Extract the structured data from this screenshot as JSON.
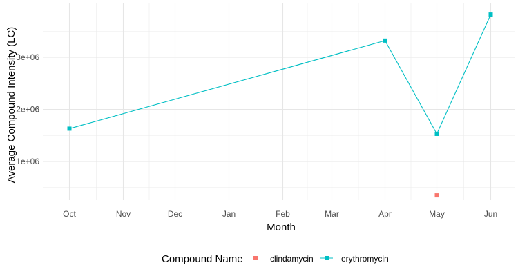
{
  "chart_data": {
    "type": "line",
    "xlabel": "Month",
    "ylabel": "Average Compound Intensity (LC)",
    "x_categories": [
      "Oct",
      "Nov",
      "Dec",
      "Jan",
      "Feb",
      "Mar",
      "Apr",
      "May",
      "Jun"
    ],
    "y_ticks": [
      {
        "value": 1000000,
        "label": "1e+06"
      },
      {
        "value": 2000000,
        "label": "2e+06"
      },
      {
        "value": 3000000,
        "label": "3e+06"
      }
    ],
    "ylim": [
      250000,
      4000000
    ],
    "grid": true,
    "legend": {
      "title": "Compound Name",
      "placement": "bottom"
    },
    "series": [
      {
        "name": "clindamycin",
        "color": "#F8766D",
        "line": false,
        "points": [
          {
            "month": "May",
            "value": 350000
          }
        ]
      },
      {
        "name": "erythromycin",
        "color": "#00BFC4",
        "line": true,
        "points": [
          {
            "month": "Oct",
            "value": 1630000
          },
          {
            "month": "Apr",
            "value": 3320000
          },
          {
            "month": "May",
            "value": 1530000
          },
          {
            "month": "Jun",
            "value": 3820000
          }
        ]
      }
    ]
  }
}
